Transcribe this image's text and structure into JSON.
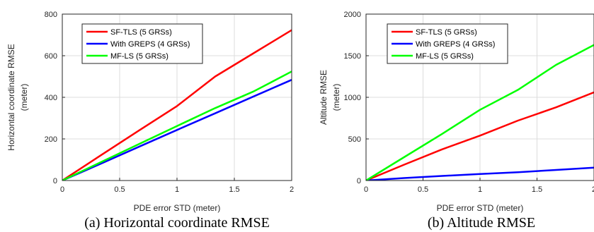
{
  "chart_data": [
    {
      "type": "line",
      "caption": "(a) Horizontal coordinate RMSE",
      "xlabel": "PDE error STD (meter)",
      "ylabel": [
        "Horizontal coordinate RMSE",
        "(meter)"
      ],
      "xlim": [
        0,
        2
      ],
      "ylim": [
        0,
        800
      ],
      "xticks": [
        0,
        0.5,
        1,
        1.5,
        2
      ],
      "xtick_labels": [
        "0",
        "0.5",
        "1",
        "1.5",
        "2"
      ],
      "yticks": [
        0,
        200,
        400,
        600,
        800
      ],
      "ytick_labels": [
        "0",
        "200",
        "400",
        "600",
        "800"
      ],
      "grid": true,
      "legend_position": "top-left",
      "series": [
        {
          "name": "SF-TLS (5 GRSs)",
          "color": "#ff0000",
          "x": [
            0,
            0.333,
            0.667,
            1.0,
            1.333,
            1.667,
            2.0
          ],
          "y": [
            0,
            120,
            240,
            358,
            500,
            612,
            723
          ]
        },
        {
          "name": "With GREPS (4 GRSs)",
          "color": "#0000ff",
          "x": [
            0,
            0.333,
            0.667,
            1.0,
            1.333,
            1.667,
            2.0
          ],
          "y": [
            0,
            80,
            162,
            243,
            323,
            404,
            484
          ]
        },
        {
          "name": "MF-LS (5 GRSs)",
          "color": "#00ff00",
          "x": [
            0,
            0.333,
            0.667,
            1.0,
            1.333,
            1.667,
            2.0
          ],
          "y": [
            0,
            87,
            175,
            262,
            348,
            428,
            524
          ]
        }
      ]
    },
    {
      "type": "line",
      "caption": "(b) Altitude RMSE",
      "xlabel": "PDE error STD (meter)",
      "ylabel": [
        "Altitude RMSE",
        "(meter)"
      ],
      "xlim": [
        0,
        2
      ],
      "ylim": [
        0,
        2000
      ],
      "xticks": [
        0,
        0.5,
        1,
        1.5,
        2
      ],
      "xtick_labels": [
        "0",
        "0.5",
        "1",
        "1.5",
        "2"
      ],
      "yticks": [
        0,
        500,
        1000,
        1500,
        2000
      ],
      "ytick_labels": [
        "0",
        "500",
        "1000",
        "1500",
        "2000"
      ],
      "grid": true,
      "legend_position": "top-left",
      "series": [
        {
          "name": "SF-TLS (5 GRSs)",
          "color": "#ff0000",
          "x": [
            0,
            0.333,
            0.667,
            1.0,
            1.333,
            1.667,
            2.0
          ],
          "y": [
            0,
            190,
            375,
            540,
            720,
            880,
            1060
          ]
        },
        {
          "name": "With GREPS (4 GRSs)",
          "color": "#0000ff",
          "x": [
            0,
            0.333,
            0.667,
            1.0,
            1.333,
            1.667,
            2.0
          ],
          "y": [
            0,
            30,
            55,
            78,
            100,
            127,
            155
          ]
        },
        {
          "name": "MF-LS (5 GRSs)",
          "color": "#00ff00",
          "x": [
            0,
            0.333,
            0.667,
            1.0,
            1.333,
            1.667,
            2.0
          ],
          "y": [
            0,
            280,
            560,
            850,
            1090,
            1390,
            1630
          ]
        }
      ]
    }
  ]
}
